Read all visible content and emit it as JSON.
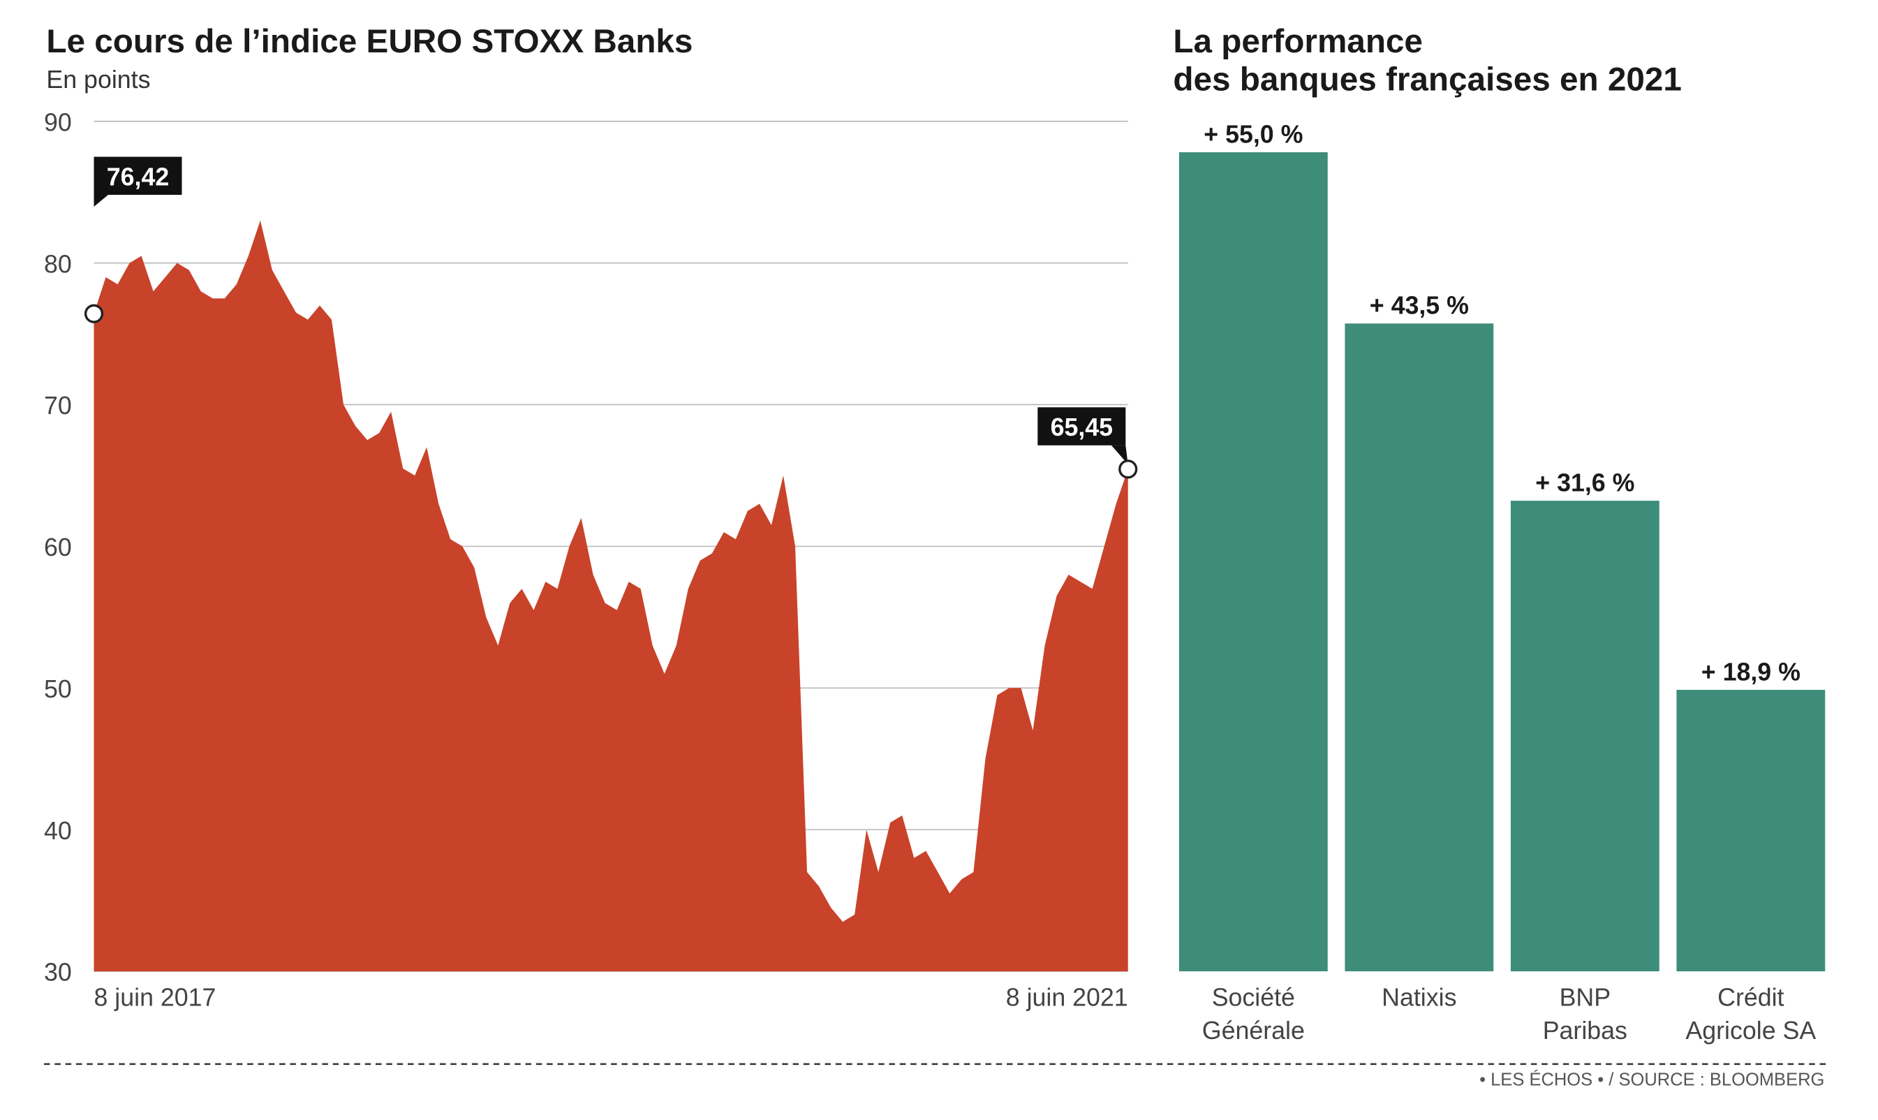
{
  "chart_data": [
    {
      "type": "area",
      "title": "Le cours de l’indice EURO STOXX Banks",
      "subtitle": "En points",
      "color": "#c8432a",
      "categories": [
        "8 juin 2017",
        null,
        null,
        null,
        null,
        null,
        null,
        null,
        null,
        null,
        null,
        null,
        null,
        null,
        null,
        null,
        null,
        null,
        null,
        null,
        null,
        null,
        null,
        null,
        null,
        null,
        null,
        null,
        null,
        null,
        null,
        null,
        null,
        null,
        null,
        null,
        null,
        null,
        null,
        null,
        null,
        null,
        null,
        null,
        null,
        null,
        null,
        null,
        null,
        null,
        null,
        null,
        null,
        null,
        null,
        null,
        null,
        null,
        null,
        null,
        null,
        null,
        null,
        null,
        null,
        null,
        null,
        null,
        null,
        null,
        null,
        null,
        null,
        null,
        null,
        null,
        null,
        null,
        null,
        null,
        null,
        null,
        null,
        null,
        null,
        null,
        null,
        "8 juin 2021"
      ],
      "values": [
        76.42,
        79,
        78.5,
        80,
        80.5,
        78,
        79,
        80,
        79.5,
        78,
        77.5,
        77.5,
        78.5,
        80.5,
        83,
        79.5,
        78,
        76.5,
        76,
        77,
        76,
        70,
        68.5,
        67.5,
        68,
        69.5,
        65.5,
        65,
        67,
        63,
        60.5,
        60,
        58.5,
        55,
        53,
        56,
        57,
        55.5,
        57.5,
        57,
        60,
        62,
        58,
        56,
        55.5,
        57.5,
        57,
        53,
        51,
        53,
        57,
        59,
        59.5,
        61,
        60.5,
        62.5,
        63,
        61.5,
        65,
        60,
        37,
        36,
        34.5,
        33.5,
        34,
        40,
        37,
        40.5,
        41,
        38,
        38.5,
        37,
        35.5,
        36.5,
        37,
        45,
        49.5,
        50,
        50,
        47,
        53,
        56.5,
        58,
        57.5,
        57,
        60,
        63,
        65.45
      ],
      "value_labels": [
        "76,42",
        null,
        null,
        null,
        null,
        null,
        null,
        null,
        null,
        null,
        null,
        null,
        null,
        null,
        null,
        null,
        null,
        null,
        null,
        null,
        null,
        null,
        null,
        null,
        null,
        null,
        null,
        null,
        null,
        null,
        null,
        null,
        null,
        null,
        null,
        null,
        null,
        null,
        null,
        null,
        null,
        null,
        null,
        null,
        null,
        null,
        null,
        null,
        null,
        null,
        null,
        null,
        null,
        null,
        null,
        null,
        null,
        null,
        null,
        null,
        null,
        null,
        null,
        null,
        null,
        null,
        null,
        null,
        null,
        null,
        null,
        null,
        null,
        null,
        null,
        null,
        null,
        null,
        null,
        null,
        null,
        null,
        null,
        null,
        null,
        null,
        null,
        "65,45"
      ],
      "ylim": [
        30,
        90
      ],
      "yticks": [
        30,
        40,
        50,
        60,
        70,
        80,
        90
      ],
      "grid": true
    },
    {
      "type": "bar",
      "title": [
        "La performance",
        "des banques françaises en 2021"
      ],
      "color": "#3e8c7a",
      "categories": [
        [
          "Société",
          "Générale"
        ],
        [
          "Natixis"
        ],
        [
          "BNP",
          "Paribas"
        ],
        [
          "Crédit",
          "Agricole SA"
        ]
      ],
      "values": [
        55.0,
        43.5,
        31.6,
        18.9
      ],
      "value_labels": [
        "+ 55,0 %",
        "+ 43,5 %",
        "+ 31,6 %",
        "+ 18,9 %"
      ]
    }
  ],
  "footer": "• LES ÉCHOS • / SOURCE : BLOOMBERG"
}
